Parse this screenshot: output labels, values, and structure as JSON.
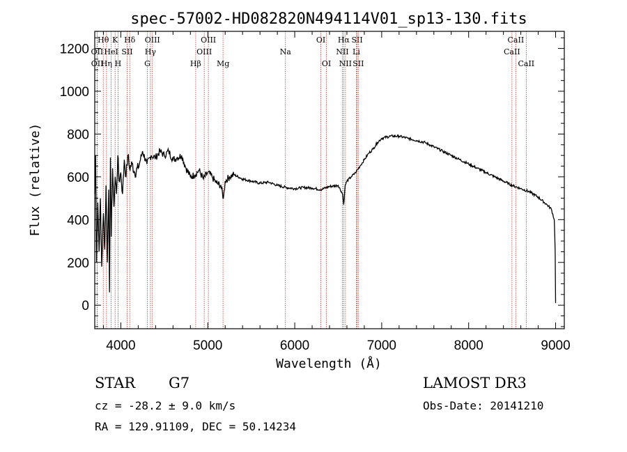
{
  "chart_data": {
    "type": "line",
    "title": "spec-57002-HD082820N494114V01_sp13-130.fits",
    "xlabel": "Wavelength (Å)",
    "ylabel": "Flux (relative)",
    "xlim": [
      3700,
      9100
    ],
    "ylim": [
      -110,
      1280
    ],
    "xticks": [
      4000,
      5000,
      6000,
      7000,
      8000,
      9000
    ],
    "yticks": [
      0,
      200,
      400,
      600,
      800,
      1000,
      1200
    ],
    "series": [
      {
        "name": "flux",
        "x": [
          3700,
          3710,
          3720,
          3735,
          3750,
          3765,
          3780,
          3800,
          3815,
          3830,
          3845,
          3860,
          3870,
          3880,
          3890,
          3905,
          3920,
          3935,
          3950,
          3965,
          3980,
          4000,
          4020,
          4040,
          4060,
          4080,
          4100,
          4130,
          4160,
          4200,
          4250,
          4300,
          4350,
          4400,
          4450,
          4500,
          4550,
          4600,
          4650,
          4700,
          4750,
          4800,
          4850,
          4900,
          4950,
          5000,
          5050,
          5100,
          5150,
          5180,
          5200,
          5250,
          5300,
          5400,
          5500,
          5600,
          5700,
          5800,
          5900,
          6000,
          6100,
          6200,
          6300,
          6400,
          6500,
          6550,
          6563,
          6580,
          6600,
          6650,
          6700,
          6750,
          6800,
          6850,
          6900,
          6950,
          7000,
          7100,
          7200,
          7300,
          7400,
          7500,
          7600,
          7700,
          7800,
          7900,
          8000,
          8100,
          8200,
          8300,
          8400,
          8500,
          8600,
          8700,
          8800,
          8900,
          8950,
          8985,
          8995,
          9000
        ],
        "y": [
          520,
          700,
          200,
          480,
          250,
          500,
          180,
          430,
          260,
          560,
          200,
          540,
          60,
          690,
          320,
          640,
          460,
          600,
          520,
          700,
          580,
          620,
          520,
          680,
          600,
          700,
          640,
          660,
          620,
          640,
          720,
          660,
          700,
          690,
          720,
          700,
          720,
          680,
          690,
          700,
          640,
          600,
          610,
          630,
          590,
          620,
          600,
          570,
          560,
          500,
          580,
          600,
          610,
          590,
          580,
          570,
          575,
          560,
          550,
          545,
          550,
          548,
          540,
          555,
          560,
          520,
          470,
          560,
          580,
          600,
          620,
          650,
          680,
          710,
          730,
          760,
          780,
          790,
          790,
          780,
          770,
          760,
          740,
          720,
          700,
          680,
          660,
          640,
          620,
          600,
          580,
          560,
          545,
          530,
          505,
          470,
          450,
          400,
          250,
          10
        ]
      }
    ],
    "spectral_lines": [
      {
        "label": "Hθ",
        "wl": 3798,
        "row": 0
      },
      {
        "label": "K",
        "wl": 3934,
        "row": 0
      },
      {
        "label": "Hδ",
        "wl": 4102,
        "row": 0
      },
      {
        "label": "OIII",
        "wl": 4363,
        "row": 0
      },
      {
        "label": "OIII",
        "wl": 5007,
        "row": 0
      },
      {
        "label": "OI",
        "wl": 6300,
        "row": 0
      },
      {
        "label": "Hα",
        "wl": 6563,
        "row": 0
      },
      {
        "label": "SII",
        "wl": 6717,
        "row": 0
      },
      {
        "label": "CaII",
        "wl": 8542,
        "row": 0
      },
      {
        "label": "OII",
        "wl": 3727,
        "row": 1
      },
      {
        "label": "HeI",
        "wl": 3889,
        "row": 1
      },
      {
        "label": "SII",
        "wl": 4072,
        "row": 1
      },
      {
        "label": "Hγ",
        "wl": 4340,
        "row": 1
      },
      {
        "label": "OIII",
        "wl": 4959,
        "row": 1
      },
      {
        "label": "Na",
        "wl": 5893,
        "row": 1
      },
      {
        "label": "NII",
        "wl": 6548,
        "row": 1
      },
      {
        "label": "Li",
        "wl": 6708,
        "row": 1
      },
      {
        "label": "CaII",
        "wl": 8498,
        "row": 1
      },
      {
        "label": "OII",
        "wl": 3729,
        "row": 2
      },
      {
        "label": "Hη",
        "wl": 3835,
        "row": 2
      },
      {
        "label": "H",
        "wl": 3968,
        "row": 2
      },
      {
        "label": "G",
        "wl": 4305,
        "row": 2
      },
      {
        "label": "Hβ",
        "wl": 4861,
        "row": 2
      },
      {
        "label": "Mg",
        "wl": 5175,
        "row": 2
      },
      {
        "label": "OI",
        "wl": 6364,
        "row": 2
      },
      {
        "label": "NII",
        "wl": 6583,
        "row": 2
      },
      {
        "label": "SII",
        "wl": 6731,
        "row": 2
      },
      {
        "label": "CaII",
        "wl": 8662,
        "row": 2
      }
    ]
  },
  "info": {
    "object_type": "STAR",
    "subclass": "G7",
    "survey": "LAMOST DR3",
    "redshift": "cz = -28.2 ± 9.0 km/s",
    "obs_date": "Obs-Date: 20141210",
    "coords": "RA = 129.91109, DEC =  50.14234"
  }
}
